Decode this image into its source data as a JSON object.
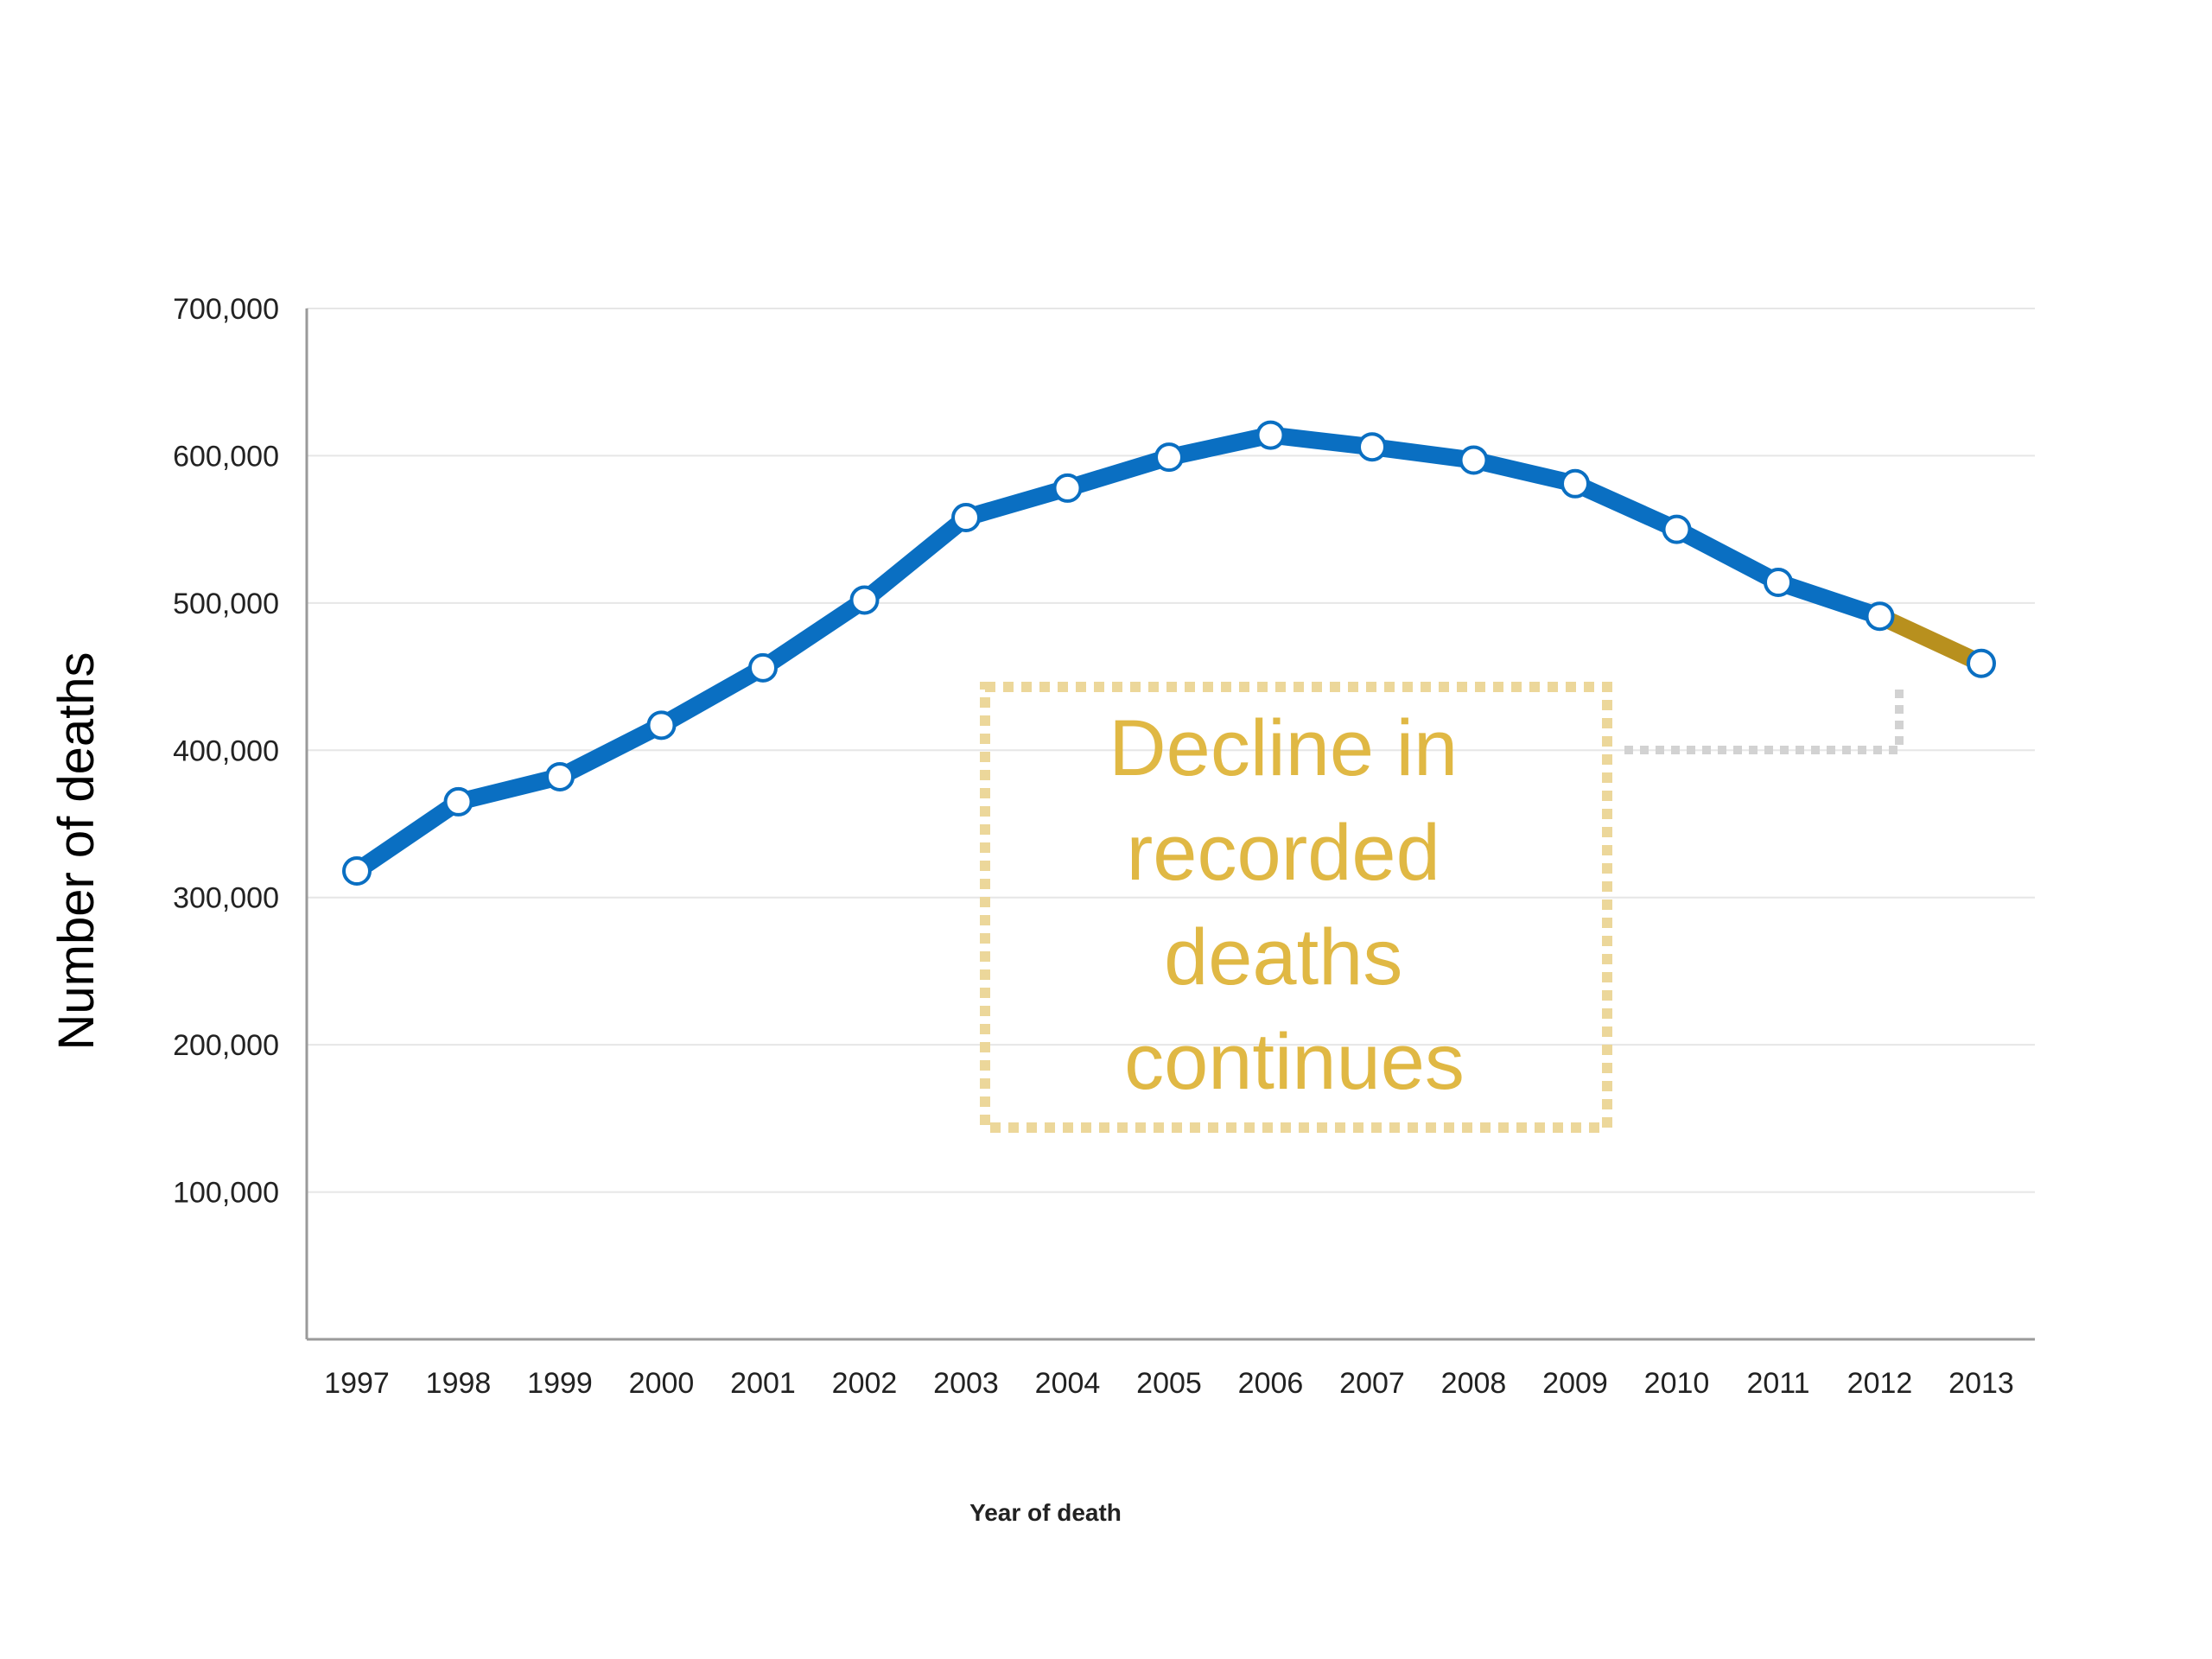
{
  "chart_data": {
    "type": "line",
    "title": "",
    "xlabel": "Year of death",
    "ylabel": "Number of deaths",
    "x": [
      "1997",
      "1998",
      "1999",
      "2000",
      "2001",
      "2002",
      "2003",
      "2004",
      "2005",
      "2006",
      "2007",
      "2008",
      "2009",
      "2010",
      "2011",
      "2012",
      "2013"
    ],
    "series": [
      {
        "values": [
          318000,
          365000,
          382000,
          417000,
          456000,
          502000,
          558000,
          578000,
          599000,
          614000,
          606000,
          597000,
          581000,
          550000,
          514000,
          491000,
          459000
        ]
      }
    ],
    "highlight_segment": {
      "from": "2012",
      "to": "2013"
    },
    "ylim": [
      0,
      700000
    ],
    "yticks": [
      100000,
      200000,
      300000,
      400000,
      500000,
      600000,
      700000
    ],
    "ytick_labels": [
      "100,000",
      "200,000",
      "300,000",
      "400,000",
      "500,000",
      "600,000",
      "700,000"
    ],
    "grid": true,
    "legend": "none",
    "annotation": {
      "lines": [
        "Decline in",
        "recorded",
        "deaths",
        "continues"
      ],
      "points_to": "2013"
    },
    "colors": {
      "line": "#0a6fc2",
      "highlight": "#b8901e",
      "marker_fill": "#ffffff",
      "annotation_text": "#e0b844",
      "annotation_border": "#ecd79a",
      "connector": "#d2d2d2",
      "grid": "#e6e6e6",
      "axis": "#9a9a9a"
    }
  }
}
